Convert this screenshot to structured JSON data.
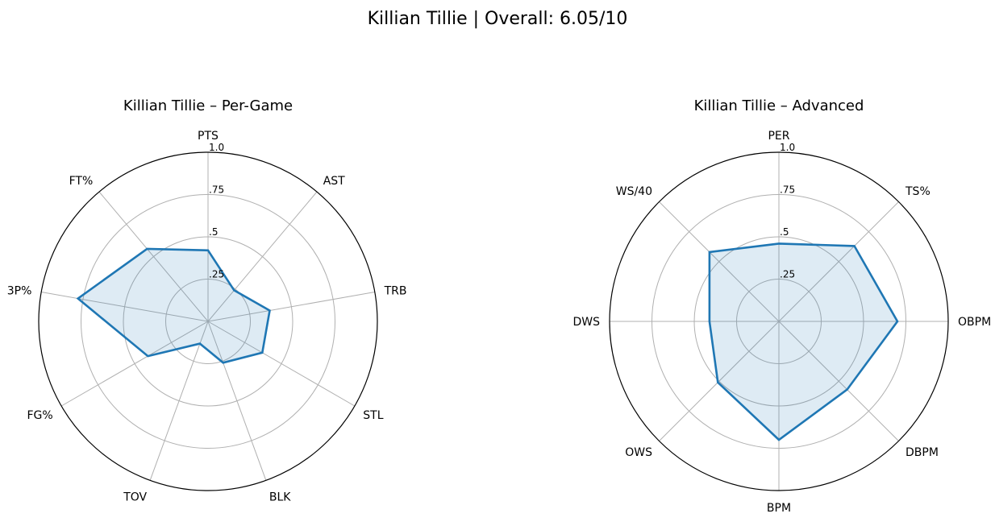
{
  "figure_title": "Killian Tillie | Overall: 6.05/10",
  "colors": {
    "line": "#1f77b4",
    "fill": "#1f77b4",
    "grid": "#b0b0b0",
    "frame": "#000000"
  },
  "chart_data": [
    {
      "type": "radar",
      "title": "Killian Tillie – Per-Game",
      "axes": [
        "PTS",
        "AST",
        "TRB",
        "STL",
        "BLK",
        "TOV",
        "FG%",
        "3P%",
        "FT%"
      ],
      "values": [
        0.42,
        0.24,
        0.37,
        0.37,
        0.26,
        0.14,
        0.41,
        0.78,
        0.56
      ],
      "rmax": 1.0,
      "r_ticks": [
        0.25,
        0.5,
        0.75,
        1.0
      ],
      "r_tick_labels": [
        ".25",
        ".5",
        ".75",
        "1.0"
      ],
      "grid": true
    },
    {
      "type": "radar",
      "title": "Killian Tillie – Advanced",
      "axes": [
        "PER",
        "TS%",
        "OBPM",
        "DBPM",
        "BPM",
        "OWS",
        "DWS",
        "WS/40"
      ],
      "values": [
        0.46,
        0.63,
        0.7,
        0.57,
        0.7,
        0.51,
        0.41,
        0.58
      ],
      "rmax": 1.0,
      "r_ticks": [
        0.25,
        0.5,
        0.75,
        1.0
      ],
      "r_tick_labels": [
        ".25",
        ".5",
        ".75",
        "1.0"
      ],
      "grid": true
    }
  ]
}
